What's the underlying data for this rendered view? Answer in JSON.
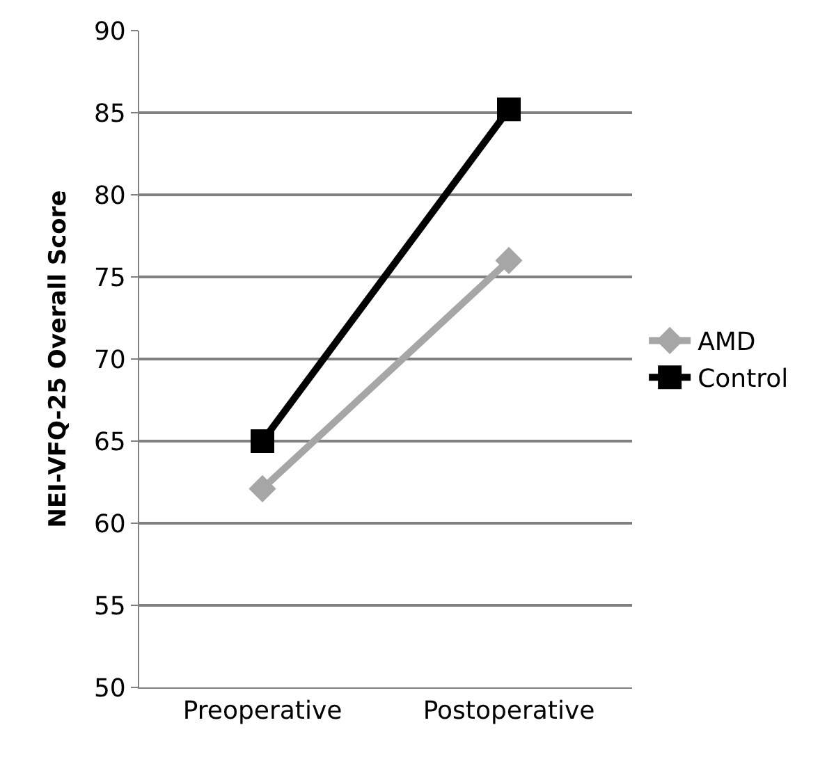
{
  "chart_data": {
    "type": "line",
    "ylabel": "NEI-VFQ-25 Overall Score",
    "categories": [
      "Preoperative",
      "Postoperative"
    ],
    "series": [
      {
        "name": "AMD",
        "color": "#a6a6a6",
        "marker": "diamond",
        "values": [
          62.1,
          76.0
        ]
      },
      {
        "name": "Control",
        "color": "#000000",
        "marker": "square",
        "values": [
          65.0,
          85.2
        ]
      }
    ],
    "ylim": [
      50,
      90
    ],
    "yticks": [
      50,
      55,
      60,
      65,
      70,
      75,
      80,
      85,
      90
    ],
    "grid": "y",
    "legend": "right",
    "line_style": "solid"
  }
}
